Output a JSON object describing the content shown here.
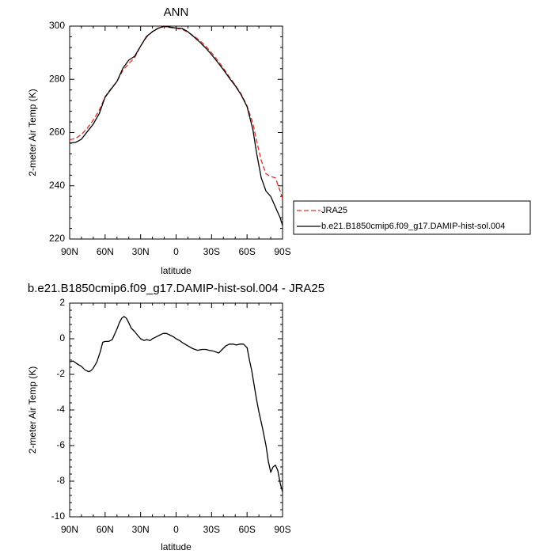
{
  "chart_data": [
    {
      "type": "line",
      "title": "ANN",
      "xlabel": "latitude",
      "ylabel": "2-meter Air Temp (K)",
      "xlim": [
        90,
        -90
      ],
      "ylim": [
        220,
        300
      ],
      "x_tick_values": [
        90,
        60,
        30,
        0,
        -30,
        -60,
        -90
      ],
      "x_tick_labels": [
        "90N",
        "60N",
        "30N",
        "0",
        "30S",
        "60S",
        "90S"
      ],
      "y_ticks": [
        220,
        240,
        260,
        280,
        300
      ],
      "legend_position": "right",
      "series": [
        {
          "name": "JRA25",
          "color": "#e0302a",
          "dash": "dashed",
          "x": [
            90,
            85,
            80,
            75,
            70,
            65,
            60,
            55,
            50,
            45,
            40,
            35,
            30,
            25,
            20,
            15,
            10,
            5,
            0,
            -5,
            -10,
            -15,
            -20,
            -25,
            -30,
            -35,
            -40,
            -45,
            -50,
            -55,
            -60,
            -65,
            -68,
            -72,
            -76,
            -80,
            -84,
            -88,
            -90
          ],
          "y": [
            257.3,
            257.8,
            259.3,
            261.7,
            264.7,
            268.4,
            273.5,
            276.5,
            279.2,
            283.4,
            285.9,
            288.2,
            292.5,
            295.8,
            298.0,
            299.3,
            299.8,
            299.5,
            299.2,
            298.8,
            297.7,
            296.3,
            294.6,
            292.5,
            290.0,
            287.2,
            284.2,
            280.9,
            277.9,
            274.5,
            270.0,
            263.5,
            257.0,
            249.5,
            244.5,
            243.5,
            243.0,
            238.0,
            235.0
          ]
        },
        {
          "name": "b.e21.B1850cmip6.f09_g17.DAMIP-hist-sol.004",
          "color": "#000000",
          "dash": "solid",
          "x": [
            90,
            85,
            80,
            75,
            70,
            65,
            60,
            55,
            50,
            45,
            40,
            35,
            30,
            25,
            20,
            15,
            10,
            5,
            0,
            -5,
            -10,
            -15,
            -20,
            -25,
            -30,
            -35,
            -40,
            -45,
            -50,
            -55,
            -60,
            -65,
            -68,
            -72,
            -76,
            -80,
            -84,
            -88,
            -90
          ],
          "y": [
            256.0,
            256.3,
            257.5,
            260.4,
            263.2,
            267.1,
            273.3,
            276.3,
            279.2,
            284.2,
            287.2,
            288.7,
            292.5,
            296.1,
            297.9,
            299.2,
            300.0,
            299.6,
            299.3,
            299.1,
            297.9,
            296.0,
            294.0,
            291.8,
            289.3,
            286.5,
            283.6,
            280.5,
            277.6,
            274.2,
            269.7,
            261.0,
            252.5,
            243.0,
            238.0,
            236.0,
            232.0,
            228.0,
            225.0
          ]
        }
      ]
    },
    {
      "type": "line",
      "title": "b.e21.B1850cmip6.f09_g17.DAMIP-hist-sol.004 - JRA25",
      "xlabel": "latitude",
      "ylabel": "2-meter Air Temp (K)",
      "xlim": [
        90,
        -90
      ],
      "ylim": [
        -10,
        2
      ],
      "x_tick_values": [
        90,
        60,
        30,
        0,
        -30,
        -60,
        -90
      ],
      "x_tick_labels": [
        "90N",
        "60N",
        "30N",
        "0",
        "30S",
        "60S",
        "90S"
      ],
      "y_ticks": [
        -10,
        -8,
        -6,
        -4,
        -2,
        0,
        2
      ],
      "series": [
        {
          "color": "#000000",
          "dash": "solid",
          "x": [
            90,
            87,
            84,
            80,
            77,
            74,
            72,
            70,
            67,
            64,
            62,
            60,
            57,
            54,
            52,
            50,
            48,
            46,
            44,
            42,
            40,
            38,
            35,
            32,
            30,
            27,
            25,
            22,
            20,
            17,
            14,
            11,
            8,
            5,
            2,
            0,
            -3,
            -6,
            -10,
            -14,
            -18,
            -22,
            -25,
            -28,
            -32,
            -36,
            -39,
            -42,
            -45,
            -48,
            -51,
            -54,
            -57,
            -60,
            -62,
            -64,
            -66,
            -68,
            -70,
            -73,
            -76,
            -78,
            -80,
            -82,
            -84,
            -86,
            -88,
            -90
          ],
          "y": [
            -1.3,
            -1.25,
            -1.4,
            -1.55,
            -1.75,
            -1.85,
            -1.8,
            -1.65,
            -1.3,
            -0.7,
            -0.2,
            -0.15,
            -0.15,
            -0.05,
            0.25,
            0.55,
            0.9,
            1.15,
            1.25,
            1.15,
            0.9,
            0.6,
            0.4,
            0.15,
            0.0,
            -0.1,
            -0.05,
            -0.1,
            0.0,
            0.1,
            0.2,
            0.3,
            0.3,
            0.2,
            0.1,
            0.0,
            -0.1,
            -0.25,
            -0.4,
            -0.55,
            -0.65,
            -0.6,
            -0.6,
            -0.65,
            -0.7,
            -0.8,
            -0.6,
            -0.4,
            -0.3,
            -0.3,
            -0.35,
            -0.3,
            -0.3,
            -0.5,
            -1.2,
            -1.8,
            -2.6,
            -3.4,
            -4.1,
            -5.0,
            -6.0,
            -6.9,
            -7.5,
            -7.2,
            -7.1,
            -7.4,
            -8.1,
            -8.6
          ]
        }
      ]
    }
  ]
}
